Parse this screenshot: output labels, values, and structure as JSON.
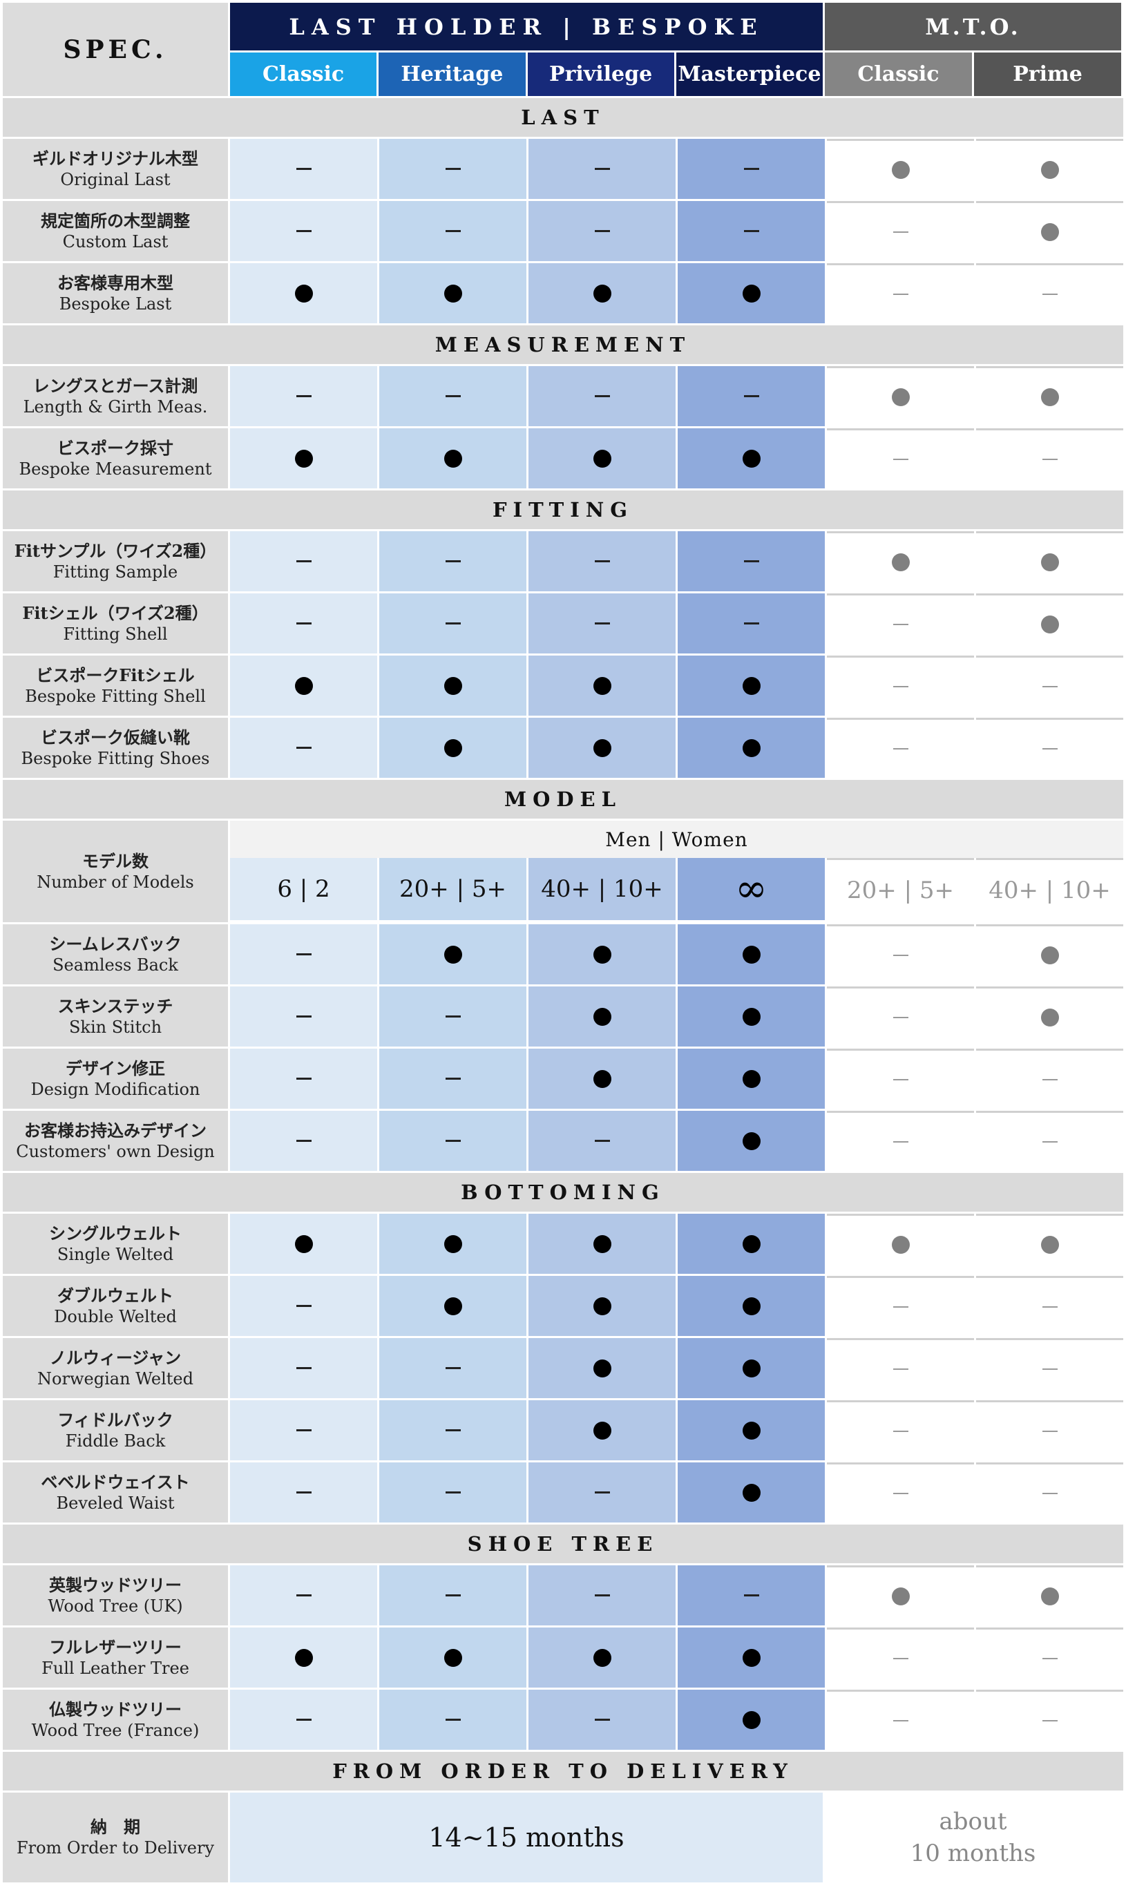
{
  "header": {
    "spec": "SPEC.",
    "bespoke": "LAST HOLDER | BESPOKE",
    "mto": "M.T.O.",
    "columns": [
      "Classic",
      "Heritage",
      "Privilege",
      "Masterpiece",
      "Classic",
      "Prime"
    ]
  },
  "sections": {
    "last": "LAST",
    "measurement": "MEASUREMENT",
    "fitting": "FITTING",
    "model": "MODEL",
    "bottoming": "BOTTOMING",
    "shoe_tree": "SHOE TREE",
    "delivery": "FROM ORDER TO DELIVERY"
  },
  "legend": {
    "dot": "●",
    "dash": "—"
  },
  "rows": {
    "original_last": {
      "jp": "ギルドオリジナル木型",
      "en": "Original Last",
      "values": [
        "dash",
        "dash",
        "dash",
        "dash",
        "dot",
        "dot"
      ]
    },
    "custom_last": {
      "jp": "規定箇所の木型調整",
      "en": "Custom Last",
      "values": [
        "dash",
        "dash",
        "dash",
        "dash",
        "dash",
        "dot"
      ]
    },
    "bespoke_last": {
      "jp": "お客様専用木型",
      "en": "Bespoke Last",
      "values": [
        "dot",
        "dot",
        "dot",
        "dot",
        "dash",
        "dash"
      ]
    },
    "length_girth": {
      "jp": "レングスとガース計測",
      "en": "Length & Girth Meas.",
      "values": [
        "dash",
        "dash",
        "dash",
        "dash",
        "dot",
        "dot"
      ]
    },
    "bespoke_measurement": {
      "jp": "ビスポーク採寸",
      "en": "Bespoke Measurement",
      "values": [
        "dot",
        "dot",
        "dot",
        "dot",
        "dash",
        "dash"
      ]
    },
    "fitting_sample": {
      "jp": "Fitサンプル（ワイズ2種）",
      "en": "Fitting Sample",
      "values": [
        "dash",
        "dash",
        "dash",
        "dash",
        "dot",
        "dot"
      ]
    },
    "fitting_shell": {
      "jp": "Fitシェル（ワイズ2種）",
      "en": "Fitting Shell",
      "values": [
        "dash",
        "dash",
        "dash",
        "dash",
        "dash",
        "dot"
      ]
    },
    "bespoke_fitting_shell": {
      "jp": "ビスポークFitシェル",
      "en": "Bespoke Fitting Shell",
      "values": [
        "dot",
        "dot",
        "dot",
        "dot",
        "dash",
        "dash"
      ]
    },
    "bespoke_fitting_shoes": {
      "jp": "ビスポーク仮縫い靴",
      "en": "Bespoke Fitting Shoes",
      "values": [
        "dash",
        "dot",
        "dot",
        "dot",
        "dash",
        "dash"
      ]
    },
    "seamless_back": {
      "jp": "シームレスバック",
      "en": "Seamless Back",
      "values": [
        "dash",
        "dot",
        "dot",
        "dot",
        "dash",
        "dot"
      ]
    },
    "skin_stitch": {
      "jp": "スキンステッチ",
      "en": "Skin Stitch",
      "values": [
        "dash",
        "dash",
        "dot",
        "dot",
        "dash",
        "dot"
      ]
    },
    "design_modification": {
      "jp": "デザイン修正",
      "en": "Design Modification",
      "values": [
        "dash",
        "dash",
        "dot",
        "dot",
        "dash",
        "dash"
      ]
    },
    "customers_design": {
      "jp": "お客様お持込みデザイン",
      "en": "Customers' own Design",
      "values": [
        "dash",
        "dash",
        "dash",
        "dot",
        "dash",
        "dash"
      ]
    },
    "single_welted": {
      "jp": "シングルウェルト",
      "en": "Single Welted",
      "values": [
        "dot",
        "dot",
        "dot",
        "dot",
        "dot",
        "dot"
      ]
    },
    "double_welted": {
      "jp": "ダブルウェルト",
      "en": "Double Welted",
      "values": [
        "dash",
        "dot",
        "dot",
        "dot",
        "dash",
        "dash"
      ]
    },
    "norwegian_welted": {
      "jp": "ノルウィージャン",
      "en": "Norwegian Welted",
      "values": [
        "dash",
        "dash",
        "dot",
        "dot",
        "dash",
        "dash"
      ]
    },
    "fiddle_back": {
      "jp": "フィドルバック",
      "en": "Fiddle Back",
      "values": [
        "dash",
        "dash",
        "dot",
        "dot",
        "dash",
        "dash"
      ]
    },
    "beveled_waist": {
      "jp": "ベベルドウェイスト",
      "en": "Beveled Waist",
      "values": [
        "dash",
        "dash",
        "dash",
        "dot",
        "dash",
        "dash"
      ]
    },
    "wood_tree_uk": {
      "jp": "英製ウッドツリー",
      "en": "Wood Tree (UK)",
      "values": [
        "dash",
        "dash",
        "dash",
        "dash",
        "dot",
        "dot"
      ]
    },
    "full_leather_tree": {
      "jp": "フルレザーツリー",
      "en": "Full Leather Tree",
      "values": [
        "dot",
        "dot",
        "dot",
        "dot",
        "dash",
        "dash"
      ]
    },
    "wood_tree_france": {
      "jp": "仏製ウッドツリー",
      "en": "Wood Tree (France)",
      "values": [
        "dash",
        "dash",
        "dash",
        "dot",
        "dash",
        "dash"
      ]
    }
  },
  "models": {
    "jp": "モデル数",
    "en": "Number of Models",
    "men_women": "Men | Women",
    "values": [
      "6 | 2",
      "20+ | 5+",
      "40+ | 10+",
      "∞",
      "20+ | 5+",
      "40+ | 10+"
    ]
  },
  "delivery": {
    "jp": "納　期",
    "en": "From Order to Delivery",
    "bespoke": "14~15 months",
    "mto_line1": "about",
    "mto_line2": "10 months"
  }
}
